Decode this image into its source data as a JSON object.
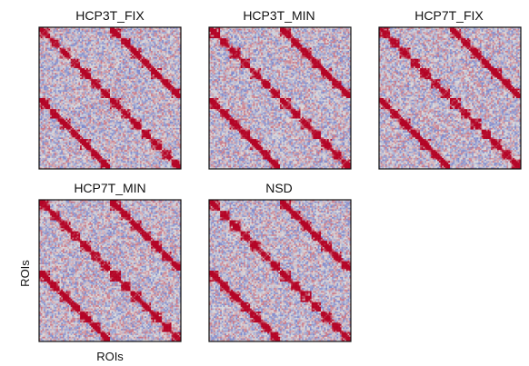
{
  "figure": {
    "ylabel": "ROIs",
    "xlabel": "ROIs"
  },
  "chart_data": [
    {
      "type": "heatmap",
      "title": "HCP3T_FIX",
      "matrix_size": 90,
      "diverging_colormap": [
        "#3b4cc0",
        "#dddddd",
        "#b40426"
      ],
      "block_diagonal_structure": true,
      "offdiagonal_bands": true
    },
    {
      "type": "heatmap",
      "title": "HCP3T_MIN",
      "matrix_size": 90,
      "diverging_colormap": [
        "#3b4cc0",
        "#dddddd",
        "#b40426"
      ],
      "block_diagonal_structure": true,
      "offdiagonal_bands": true
    },
    {
      "type": "heatmap",
      "title": "HCP7T_FIX",
      "matrix_size": 90,
      "diverging_colormap": [
        "#3b4cc0",
        "#dddddd",
        "#b40426"
      ],
      "block_diagonal_structure": true,
      "offdiagonal_bands": true
    },
    {
      "type": "heatmap",
      "title": "HCP7T_MIN",
      "matrix_size": 90,
      "diverging_colormap": [
        "#3b4cc0",
        "#dddddd",
        "#b40426"
      ],
      "block_diagonal_structure": true,
      "offdiagonal_bands": true
    },
    {
      "type": "heatmap",
      "title": "NSD",
      "matrix_size": 90,
      "diverging_colormap": [
        "#3b4cc0",
        "#dddddd",
        "#b40426"
      ],
      "block_diagonal_structure": true,
      "offdiagonal_bands": true
    }
  ]
}
